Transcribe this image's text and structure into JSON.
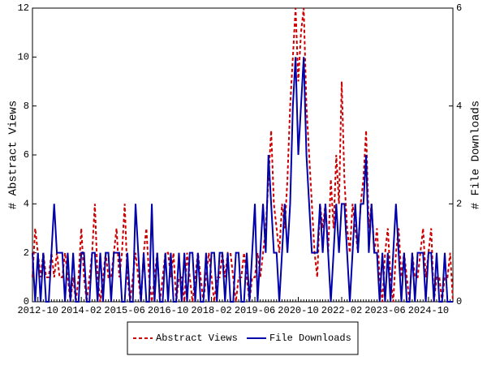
{
  "chart_data": {
    "type": "line",
    "categories": [
      null,
      null,
      "2012-10",
      null,
      null,
      null,
      null,
      null,
      null,
      null,
      null,
      null,
      null,
      null,
      null,
      null,
      null,
      null,
      "2014-02",
      null,
      null,
      null,
      null,
      null,
      null,
      null,
      null,
      null,
      null,
      null,
      null,
      null,
      null,
      null,
      "2015-06",
      null,
      null,
      null,
      null,
      null,
      null,
      null,
      null,
      null,
      null,
      null,
      null,
      null,
      null,
      null,
      "2016-10",
      null,
      null,
      null,
      null,
      null,
      null,
      null,
      null,
      null,
      null,
      null,
      null,
      null,
      null,
      null,
      "2018-02",
      null,
      null,
      null,
      null,
      null,
      null,
      null,
      null,
      null,
      null,
      null,
      null,
      null,
      null,
      null,
      "2019-06",
      null,
      null,
      null,
      null,
      null,
      null,
      null,
      null,
      null,
      null,
      null,
      null,
      null,
      null,
      null,
      "2020-10",
      null,
      null,
      null,
      null,
      null,
      null,
      null,
      null,
      null,
      null,
      null,
      null,
      null,
      null,
      null,
      "2022-02",
      null,
      null,
      null,
      null,
      null,
      null,
      null,
      null,
      null,
      null,
      null,
      null,
      null,
      null,
      null,
      "2023-06",
      null,
      null,
      null,
      null,
      null,
      null,
      null,
      null,
      null,
      null,
      null,
      null,
      null,
      null,
      null,
      "2024-10",
      null,
      null,
      null,
      null,
      null,
      null,
      null,
      null,
      null
    ],
    "ylabel": "# Abstract Views",
    "y2label": "# File Downloads",
    "ylim": [
      0,
      12
    ],
    "yticks": [
      0,
      2,
      4,
      6,
      8,
      10,
      12
    ],
    "y2lim": [
      0,
      6
    ],
    "y2ticks": [
      0,
      2,
      4,
      6
    ],
    "series": [
      {
        "name": "Abstract Views",
        "color": "#cc0000",
        "dash": true,
        "axis": "y",
        "values": [
          1,
          3,
          2,
          1,
          2,
          1,
          1,
          2,
          1,
          2,
          1,
          1,
          2,
          1,
          0,
          1,
          0,
          1,
          3,
          1,
          0,
          1,
          2,
          4,
          1,
          0,
          1,
          2,
          1,
          1,
          2,
          3,
          1,
          2,
          4,
          1,
          0,
          1,
          2,
          1,
          0,
          2,
          3,
          1,
          0,
          1,
          2,
          0,
          1,
          2,
          2,
          1,
          2,
          0,
          1,
          1,
          0,
          2,
          1,
          0,
          1,
          2,
          1,
          0,
          1,
          2,
          1,
          0,
          1,
          1,
          2,
          1,
          2,
          2,
          1,
          0,
          1,
          1,
          2,
          1,
          0,
          1,
          1,
          2,
          1,
          2,
          3,
          5,
          7,
          4,
          3,
          2,
          4,
          3,
          5,
          8,
          10,
          12,
          9,
          11,
          12,
          8,
          6,
          4,
          2,
          1,
          4,
          3,
          4,
          2,
          5,
          3,
          6,
          4,
          9,
          5,
          3,
          2,
          4,
          3,
          2,
          4,
          5,
          7,
          3,
          4,
          2,
          3,
          1,
          0,
          2,
          3,
          1,
          0,
          2,
          3,
          1,
          2,
          1,
          0,
          2,
          1,
          1,
          2,
          3,
          1,
          2,
          3,
          0,
          1,
          1,
          0,
          1,
          1,
          2,
          0
        ]
      },
      {
        "name": "File Downloads",
        "color": "#0000aa",
        "dash": false,
        "axis": "y2",
        "values": [
          1,
          0,
          1,
          0,
          1,
          0,
          0,
          1,
          2,
          1,
          1,
          1,
          0,
          1,
          0,
          1,
          0,
          0,
          1,
          1,
          0,
          0,
          1,
          1,
          0,
          1,
          0,
          1,
          1,
          0,
          1,
          1,
          1,
          0,
          0,
          1,
          0,
          0,
          2,
          1,
          0,
          1,
          0,
          0,
          2,
          0,
          1,
          0,
          0,
          1,
          0,
          1,
          0,
          0,
          1,
          0,
          1,
          0,
          1,
          1,
          0,
          1,
          0,
          0,
          1,
          0,
          1,
          1,
          0,
          1,
          1,
          0,
          1,
          0,
          0,
          1,
          1,
          0,
          0,
          1,
          0,
          1,
          2,
          0,
          1,
          2,
          1,
          3,
          2,
          1,
          1,
          0,
          1,
          2,
          1,
          2,
          4,
          5,
          3,
          4,
          5,
          3,
          2,
          1,
          1,
          1,
          2,
          1,
          2,
          1,
          0,
          1,
          2,
          1,
          2,
          2,
          1,
          0,
          1,
          2,
          1,
          2,
          2,
          3,
          1,
          2,
          1,
          1,
          0,
          1,
          0,
          1,
          0,
          1,
          2,
          1,
          0,
          1,
          0,
          0,
          1,
          0,
          1,
          1,
          1,
          0,
          1,
          1,
          0,
          1,
          0,
          0,
          1,
          0,
          0,
          0
        ]
      }
    ]
  }
}
